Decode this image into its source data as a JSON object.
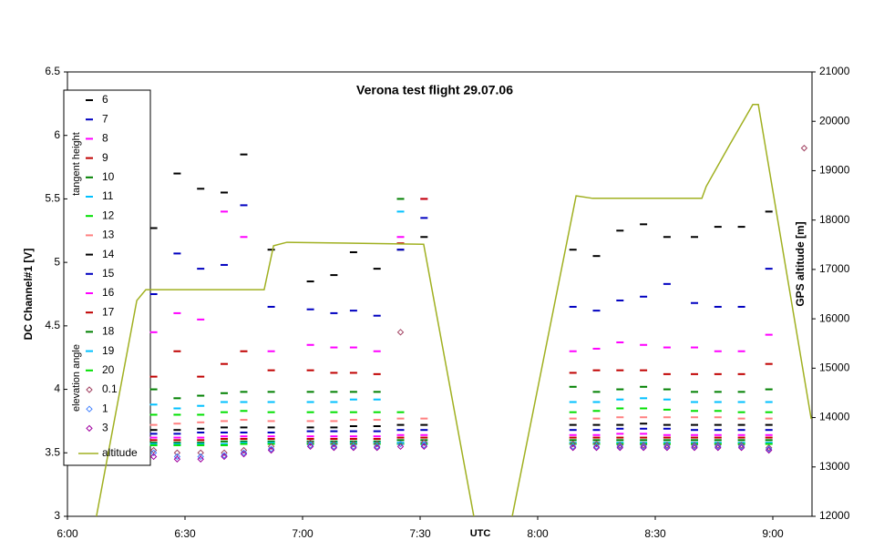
{
  "chart_data": {
    "type": "scatter",
    "title": "Verona test flight  29.07.06",
    "xlabel": "UTC",
    "ylabel": "DC Channel#1 [V]",
    "y2label": "GPS altitude [m]",
    "legend_groups": [
      "tangent height",
      "elevation angle"
    ],
    "legend": "upper left",
    "xlim": [
      360,
      550
    ],
    "xticks": [
      {
        "value": 360,
        "label": "6:00"
      },
      {
        "value": 390,
        "label": "6:30"
      },
      {
        "value": 420,
        "label": "7:00"
      },
      {
        "value": 450,
        "label": "7:30"
      },
      {
        "value": 480,
        "label": "8:00"
      },
      {
        "value": 510,
        "label": "8:30"
      },
      {
        "value": 540,
        "label": "9:00"
      }
    ],
    "ylim": [
      3,
      6.5
    ],
    "yticks": [
      3,
      3.5,
      4,
      4.5,
      5,
      5.5,
      6,
      6.5
    ],
    "y2lim": [
      12000,
      21000
    ],
    "y2ticks": [
      12000,
      13000,
      14000,
      15000,
      16000,
      17000,
      18000,
      19000,
      20000,
      21000
    ],
    "x": [
      382,
      388,
      394,
      400,
      405,
      412,
      422,
      428,
      433,
      439,
      445,
      451,
      489,
      495,
      501,
      507,
      513,
      520,
      526,
      532,
      539,
      548
    ],
    "series": [
      {
        "name": "6",
        "color": "#000000",
        "marker": "dash",
        "values": [
          5.27,
          5.7,
          5.58,
          5.55,
          5.85,
          5.1,
          4.85,
          4.9,
          5.08,
          4.95,
          5.1,
          5.2,
          5.1,
          5.05,
          5.25,
          5.3,
          5.2,
          5.2,
          5.28,
          5.28,
          5.4,
          null
        ]
      },
      {
        "name": "7",
        "color": "#0000c0",
        "marker": "dash",
        "values": [
          4.75,
          5.07,
          4.95,
          4.98,
          5.45,
          4.65,
          4.63,
          4.6,
          4.62,
          4.58,
          5.1,
          5.35,
          4.65,
          4.62,
          4.7,
          4.73,
          4.83,
          4.68,
          4.65,
          4.65,
          4.95,
          null
        ]
      },
      {
        "name": "8",
        "color": "#ff00ff",
        "marker": "dash",
        "values": [
          4.45,
          4.6,
          4.55,
          5.4,
          5.2,
          4.3,
          4.35,
          4.33,
          4.33,
          4.3,
          5.2,
          5.5,
          4.3,
          4.32,
          4.37,
          4.35,
          4.33,
          4.33,
          4.3,
          4.3,
          4.43,
          null
        ]
      },
      {
        "name": "9",
        "color": "#c00000",
        "marker": "dash",
        "values": [
          4.1,
          4.3,
          4.1,
          4.2,
          4.3,
          4.15,
          4.15,
          4.13,
          4.13,
          4.12,
          5.15,
          5.5,
          4.13,
          4.15,
          4.15,
          4.15,
          4.12,
          4.12,
          4.12,
          4.12,
          4.2,
          null
        ]
      },
      {
        "name": "10",
        "color": "#008000",
        "marker": "dash",
        "values": [
          4.0,
          3.93,
          3.95,
          3.97,
          3.98,
          3.98,
          3.98,
          3.98,
          3.98,
          3.98,
          5.5,
          null,
          4.02,
          3.98,
          4.0,
          4.02,
          4.0,
          3.98,
          3.98,
          3.98,
          4.0,
          null
        ]
      },
      {
        "name": "11",
        "color": "#00c0ff",
        "marker": "dash",
        "values": [
          3.88,
          3.85,
          3.87,
          3.9,
          3.9,
          3.9,
          3.9,
          3.9,
          3.92,
          3.92,
          5.4,
          null,
          3.9,
          3.9,
          3.92,
          3.93,
          3.92,
          3.9,
          3.9,
          3.9,
          3.9,
          null
        ]
      },
      {
        "name": "12",
        "color": "#00e000",
        "marker": "dash",
        "values": [
          3.8,
          3.8,
          3.8,
          3.82,
          3.83,
          3.82,
          3.82,
          3.82,
          3.82,
          3.82,
          3.82,
          null,
          3.82,
          3.83,
          3.85,
          3.85,
          3.84,
          3.83,
          3.83,
          3.82,
          3.82,
          null
        ]
      },
      {
        "name": "13",
        "color": "#ff8080",
        "marker": "dash",
        "values": [
          3.72,
          3.73,
          3.74,
          3.75,
          3.76,
          3.75,
          3.75,
          3.75,
          3.76,
          3.76,
          3.77,
          3.77,
          3.77,
          3.77,
          3.78,
          3.78,
          3.78,
          3.78,
          3.78,
          3.77,
          3.77,
          null
        ]
      },
      {
        "name": "14",
        "color": "#000000",
        "marker": "dash",
        "values": [
          3.68,
          3.68,
          3.69,
          3.7,
          3.7,
          3.7,
          3.7,
          3.7,
          3.71,
          3.71,
          3.72,
          3.72,
          3.72,
          3.72,
          3.72,
          3.73,
          3.72,
          3.72,
          3.72,
          3.72,
          3.72,
          null
        ]
      },
      {
        "name": "15",
        "color": "#0000c0",
        "marker": "dash",
        "values": [
          3.65,
          3.65,
          3.66,
          3.66,
          3.66,
          3.66,
          3.67,
          3.67,
          3.67,
          3.67,
          3.68,
          3.68,
          3.68,
          3.68,
          3.69,
          3.69,
          3.69,
          3.68,
          3.68,
          3.68,
          3.68,
          null
        ]
      },
      {
        "name": "16",
        "color": "#ff00ff",
        "marker": "dash",
        "values": [
          3.62,
          3.62,
          3.62,
          3.63,
          3.63,
          3.63,
          3.63,
          3.63,
          3.63,
          3.63,
          3.64,
          3.64,
          3.64,
          3.64,
          3.65,
          3.65,
          3.64,
          3.64,
          3.64,
          3.64,
          3.64,
          null
        ]
      },
      {
        "name": "17",
        "color": "#c00000",
        "marker": "dash",
        "values": [
          3.6,
          3.6,
          3.6,
          3.61,
          3.61,
          3.61,
          3.61,
          3.61,
          3.61,
          3.61,
          3.62,
          3.62,
          3.62,
          3.62,
          3.62,
          3.62,
          3.62,
          3.62,
          3.62,
          3.62,
          3.62,
          null
        ]
      },
      {
        "name": "18",
        "color": "#008000",
        "marker": "dash",
        "values": [
          3.58,
          3.58,
          3.58,
          3.59,
          3.59,
          3.59,
          3.59,
          3.59,
          3.59,
          3.59,
          3.6,
          3.6,
          3.6,
          3.6,
          3.6,
          3.6,
          3.6,
          3.6,
          3.6,
          3.6,
          3.6,
          null
        ]
      },
      {
        "name": "19",
        "color": "#00c0ff",
        "marker": "dash",
        "values": [
          3.57,
          3.57,
          3.57,
          3.57,
          3.58,
          3.58,
          3.58,
          3.58,
          3.58,
          3.58,
          3.58,
          3.58,
          3.58,
          3.58,
          3.58,
          3.58,
          3.58,
          3.58,
          3.58,
          3.58,
          3.58,
          null
        ]
      },
      {
        "name": "20",
        "color": "#00e000",
        "marker": "dash",
        "values": [
          3.56,
          3.56,
          3.56,
          3.56,
          3.57,
          3.57,
          3.57,
          3.57,
          3.57,
          3.57,
          3.57,
          3.57,
          3.57,
          3.57,
          3.57,
          3.57,
          3.57,
          3.57,
          3.57,
          3.57,
          3.57,
          null
        ]
      },
      {
        "name": "0.1",
        "color": "#a04060",
        "marker": "diamond",
        "values": [
          3.52,
          3.5,
          3.5,
          3.5,
          3.52,
          3.55,
          3.58,
          3.57,
          3.57,
          3.57,
          4.45,
          3.58,
          3.57,
          3.57,
          3.56,
          3.56,
          3.56,
          3.56,
          3.56,
          3.56,
          3.54,
          5.9
        ]
      },
      {
        "name": "1",
        "color": "#4080ff",
        "marker": "diamond",
        "values": [
          3.5,
          3.47,
          3.47,
          3.48,
          3.5,
          3.53,
          3.56,
          3.55,
          3.55,
          3.55,
          3.57,
          3.56,
          3.55,
          3.55,
          3.55,
          3.55,
          3.55,
          3.55,
          3.55,
          3.55,
          3.53,
          null
        ]
      },
      {
        "name": "3",
        "color": "#a000a0",
        "marker": "diamond",
        "values": [
          3.47,
          3.45,
          3.45,
          3.47,
          3.49,
          3.52,
          3.55,
          3.54,
          3.54,
          3.54,
          3.55,
          3.55,
          3.54,
          3.54,
          3.54,
          3.54,
          3.54,
          3.54,
          3.54,
          3.54,
          3.52,
          null
        ]
      },
      {
        "name": "altitude",
        "color": "#a0b020",
        "type": "line",
        "axis": "y2",
        "x": [
          367.4,
          377.7,
          380,
          410.2,
          412.6,
          416,
          450.9,
          463.7,
          468.6,
          473.5,
          489.8,
          494,
          521.9,
          523,
          528.8,
          534.9,
          536.3,
          549.8
        ],
        "values": [
          12000,
          16370,
          16590,
          16590,
          17480,
          17550,
          17510,
          12000,
          null,
          12000,
          18490,
          18440,
          18440,
          18680,
          19500,
          20340,
          20340,
          13970
        ]
      }
    ]
  }
}
